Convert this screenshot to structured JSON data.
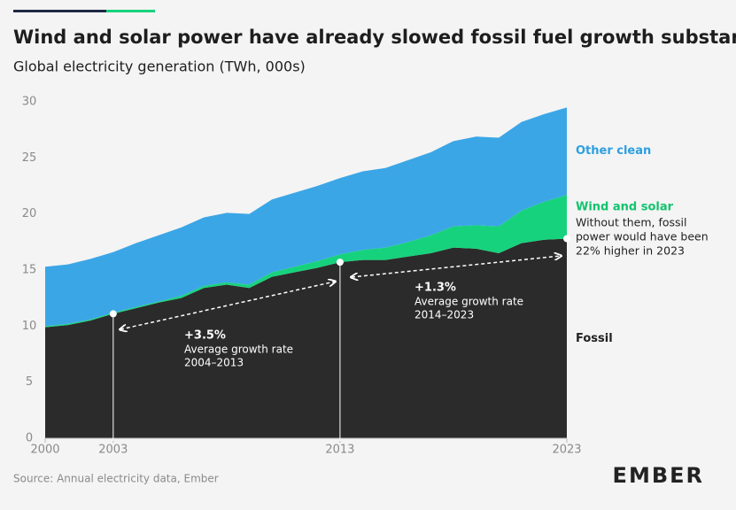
{
  "chart_data": {
    "type": "area",
    "title": "Wind and solar power have already slowed fossil fuel growth substantially",
    "subtitle": "Global electricity generation (TWh, 000s)",
    "x": [
      2000,
      2001,
      2002,
      2003,
      2004,
      2005,
      2006,
      2007,
      2008,
      2009,
      2010,
      2011,
      2012,
      2013,
      2014,
      2015,
      2016,
      2017,
      2018,
      2019,
      2020,
      2021,
      2022,
      2023
    ],
    "stacked": true,
    "series": [
      {
        "name": "Fossil",
        "color": "#2b2b2b",
        "label_color": "#222222",
        "values": [
          9.9,
          10.1,
          10.5,
          11.1,
          11.6,
          12.1,
          12.5,
          13.4,
          13.7,
          13.4,
          14.4,
          14.8,
          15.2,
          15.7,
          15.9,
          15.9,
          16.2,
          16.5,
          17.0,
          16.9,
          16.5,
          17.4,
          17.7,
          17.8
        ]
      },
      {
        "name": "Wind and solar",
        "color": "#17d27c",
        "label_color": "#12c46e",
        "values": [
          0.1,
          0.1,
          0.1,
          0.1,
          0.1,
          0.1,
          0.2,
          0.2,
          0.2,
          0.3,
          0.4,
          0.5,
          0.6,
          0.7,
          0.9,
          1.1,
          1.3,
          1.6,
          1.9,
          2.1,
          2.4,
          2.9,
          3.4,
          3.9
        ]
      },
      {
        "name": "Other clean",
        "color": "#3ba6e6",
        "label_color": "#2d9fe0",
        "values": [
          5.3,
          5.3,
          5.4,
          5.4,
          5.7,
          5.9,
          6.1,
          6.1,
          6.2,
          6.3,
          6.5,
          6.6,
          6.7,
          6.8,
          7.0,
          7.1,
          7.3,
          7.4,
          7.6,
          7.9,
          7.9,
          7.9,
          7.8,
          7.8
        ]
      }
    ],
    "note": [
      "Without them, fossil",
      "power would have been",
      "22% higher in 2023"
    ],
    "annotations": [
      {
        "title": "+3.5%",
        "lines": [
          "Average growth rate",
          "2004–2013"
        ]
      },
      {
        "title": "+1.3%",
        "lines": [
          "Average growth rate",
          "2014–2023"
        ]
      }
    ],
    "xlim": [
      2000,
      2023
    ],
    "xticks": [
      2000,
      2003,
      2013,
      2023
    ],
    "ylim": [
      0,
      30
    ],
    "yticks": [
      0,
      5,
      10,
      15,
      20,
      25,
      30
    ],
    "grid": false,
    "source": "Source: Annual electricity data, Ember",
    "logo": "EMBER"
  }
}
